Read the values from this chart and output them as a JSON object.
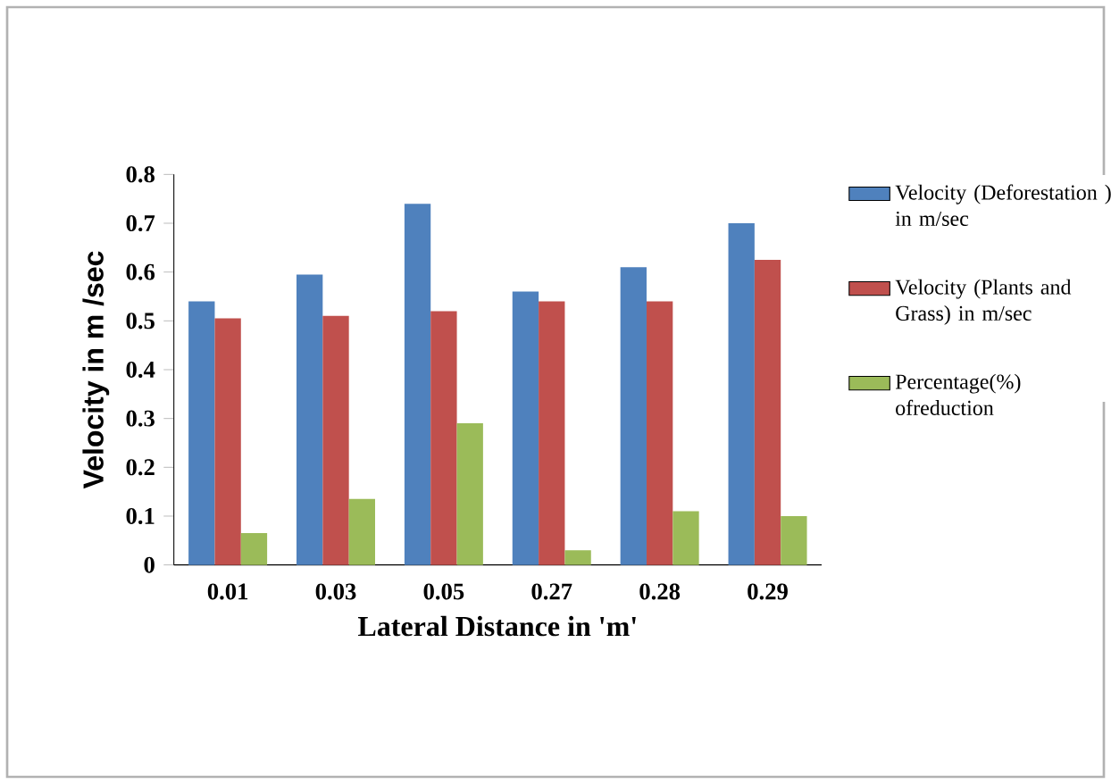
{
  "chart_data": {
    "type": "bar",
    "xlabel": "Lateral Distance in 'm'",
    "ylabel": "Velocity in m /sec",
    "categories": [
      "0.01",
      "0.03",
      "0.05",
      "0.27",
      "0.28",
      "0.29"
    ],
    "series": [
      {
        "name": "Velocity (Deforestation ) in m/sec",
        "color": "#4f81bd",
        "values": [
          0.54,
          0.595,
          0.74,
          0.56,
          0.61,
          0.7
        ]
      },
      {
        "name": "Velocity (Plants and Grass) in m/sec",
        "color": "#c0504d",
        "values": [
          0.505,
          0.51,
          0.52,
          0.54,
          0.54,
          0.625
        ]
      },
      {
        "name": "Percentage(%) ofreduction",
        "color": "#9bbb59",
        "values": [
          0.065,
          0.135,
          0.29,
          0.03,
          0.11,
          0.1
        ]
      }
    ],
    "ylim": [
      0,
      0.8
    ],
    "yticks": [
      0,
      0.1,
      0.2,
      0.3,
      0.4,
      0.5,
      0.6,
      0.7,
      0.8
    ],
    "grid": false,
    "legend": "right"
  }
}
